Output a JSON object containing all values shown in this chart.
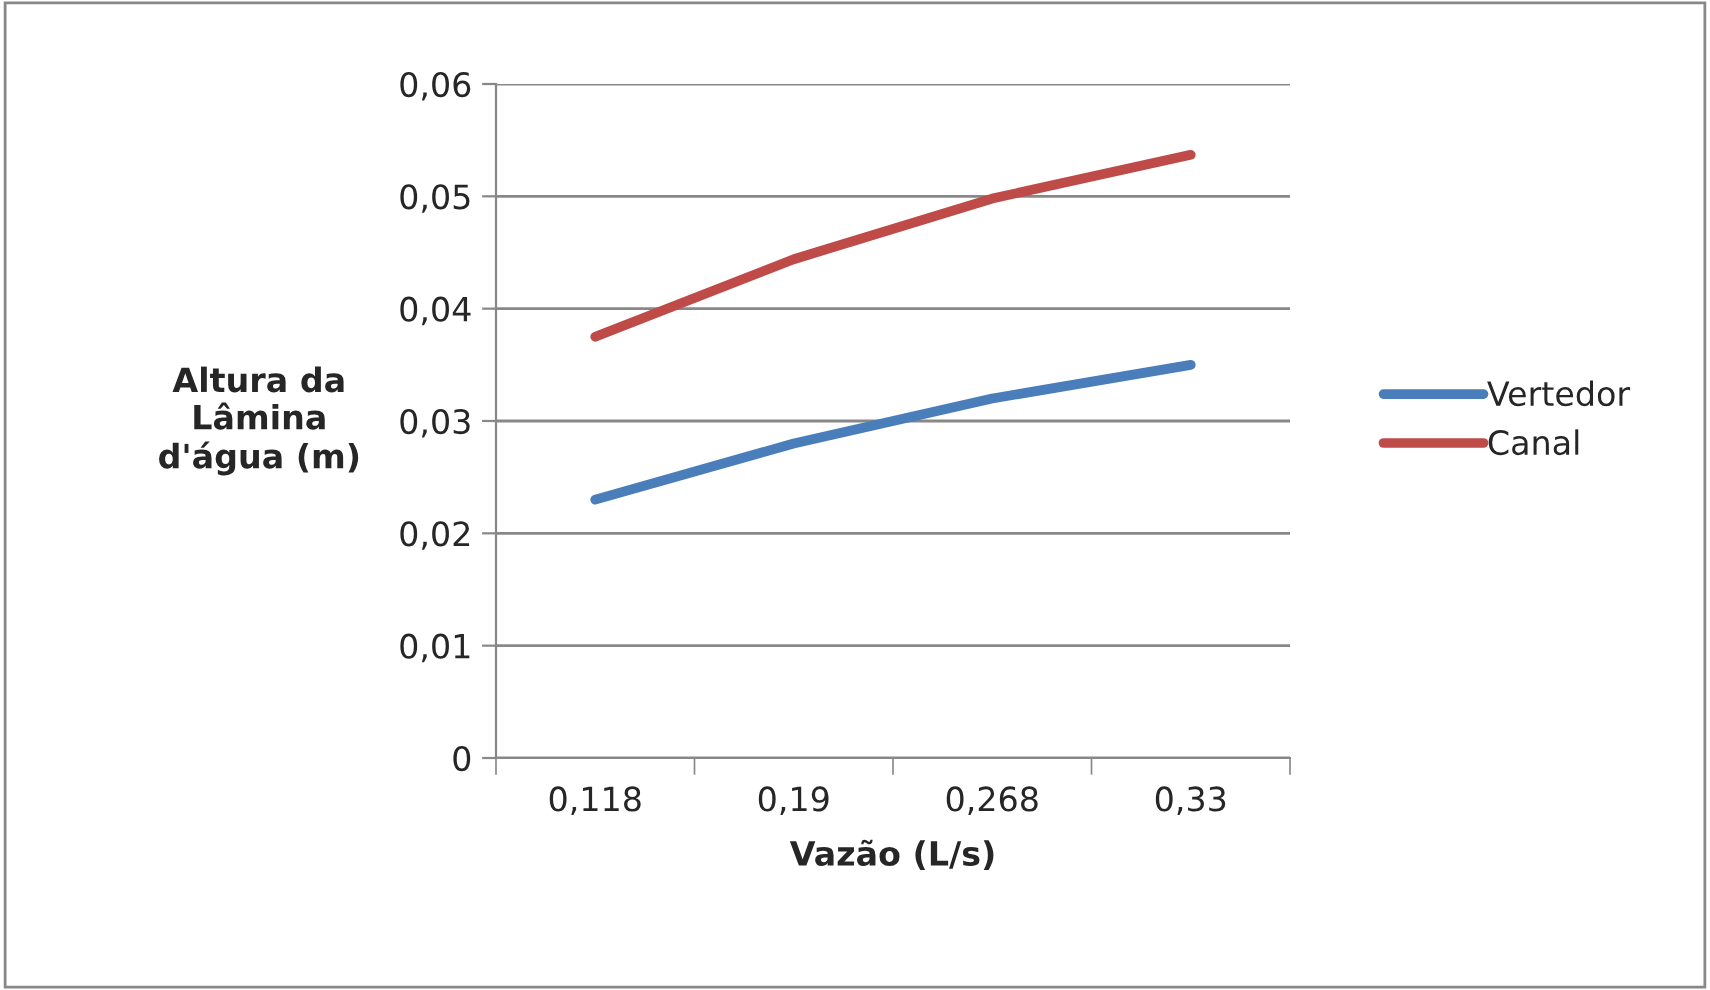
{
  "chart_data": {
    "type": "line",
    "xlabel": "Vazão (L/s)",
    "ylabel": "Altura da\nLâmina\nd'água (m)",
    "categories": [
      "0,118",
      "0,19",
      "0,268",
      "0,33"
    ],
    "series": [
      {
        "name": "Vertedor",
        "color": "#4a7ebb",
        "values": [
          0.023,
          0.028,
          0.032,
          0.035
        ]
      },
      {
        "name": "Canal",
        "color": "#be4b48",
        "values": [
          0.0375,
          0.0444,
          0.0498,
          0.0537
        ]
      }
    ],
    "ylim": [
      0,
      0.06
    ],
    "yticks": [
      {
        "value": 0,
        "label": "0"
      },
      {
        "value": 0.01,
        "label": "0,01"
      },
      {
        "value": 0.02,
        "label": "0,02"
      },
      {
        "value": 0.03,
        "label": "0,03"
      },
      {
        "value": 0.04,
        "label": "0,04"
      },
      {
        "value": 0.05,
        "label": "0,05"
      },
      {
        "value": 0.06,
        "label": "0,06"
      }
    ],
    "grid": "y",
    "legend": "right",
    "marker": "none",
    "line_style": "solid"
  }
}
